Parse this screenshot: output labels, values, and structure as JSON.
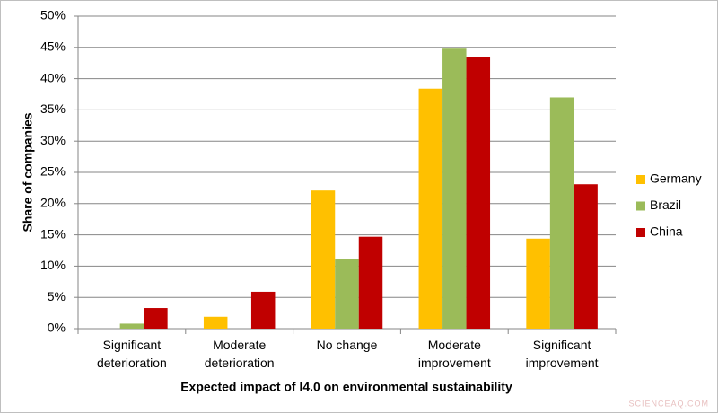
{
  "chart_data": {
    "type": "bar",
    "x_label": "Expected impact of I4.0 on environmental sustainability",
    "y_label": "Share of companies",
    "categories": [
      "Significant deterioration",
      "Moderate deterioration",
      "No change",
      "Moderate improvement",
      "Significant improvement"
    ],
    "series": [
      {
        "name": "Germany",
        "color": "#ffc000",
        "values": [
          0,
          1.9,
          22.1,
          38.4,
          14.4
        ]
      },
      {
        "name": "Brazil",
        "color": "#9bbb59",
        "values": [
          0.8,
          0,
          11.1,
          44.8,
          37.0
        ]
      },
      {
        "name": "China",
        "color": "#c00000",
        "values": [
          3.3,
          5.9,
          14.7,
          43.5,
          23.1
        ]
      }
    ],
    "ylim": [
      0,
      50
    ],
    "yticks": [
      {
        "value": 0,
        "label": "0%"
      },
      {
        "value": 5,
        "label": "5%"
      },
      {
        "value": 10,
        "label": "10%"
      },
      {
        "value": 15,
        "label": "15%"
      },
      {
        "value": 20,
        "label": "20%"
      },
      {
        "value": 25,
        "label": "25%"
      },
      {
        "value": 30,
        "label": "30%"
      },
      {
        "value": 35,
        "label": "35%"
      },
      {
        "value": 40,
        "label": "40%"
      },
      {
        "value": 45,
        "label": "45%"
      },
      {
        "value": 50,
        "label": "50%"
      }
    ],
    "grid": true,
    "legend": "right",
    "watermark": "SCIENCEAQ.COM"
  }
}
